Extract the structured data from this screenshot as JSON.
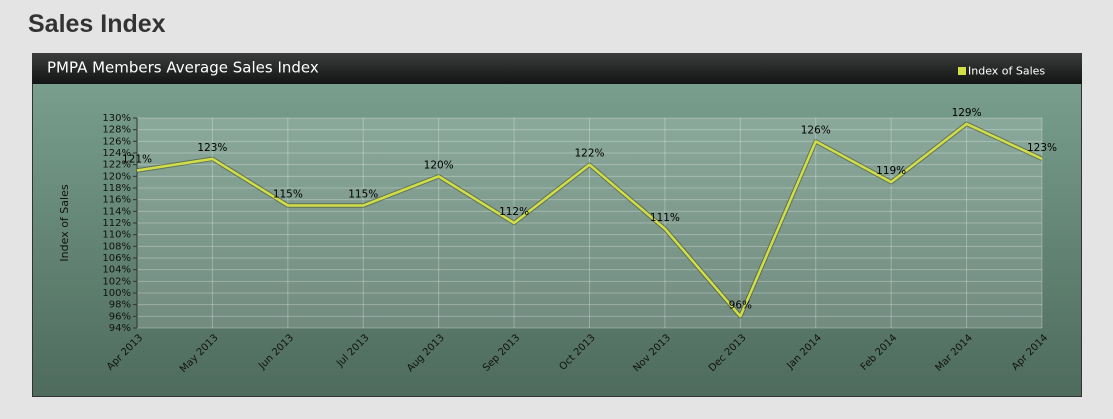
{
  "heading": "Sales Index",
  "chart_data": {
    "type": "line",
    "title": "PMPA Members Average Sales Index",
    "y_label": "Index of Sales",
    "categories": [
      "Apr 2013",
      "May 2013",
      "Jun 2013",
      "Jul 2013",
      "Aug 2013",
      "Sep 2013",
      "Oct 2013",
      "Nov 2013",
      "Dec 2013",
      "Jan 2014",
      "Feb 2014",
      "Mar 2014",
      "Apr 2014"
    ],
    "series": [
      {
        "name": "Index of Sales",
        "color": "#d2de48",
        "values": [
          121,
          123,
          115,
          115,
          120,
          112,
          122,
          111,
          96,
          126,
          119,
          129,
          123
        ],
        "value_labels": [
          "121%",
          "123%",
          "115%",
          "115%",
          "120%",
          "112%",
          "122%",
          "111%",
          "96%",
          "126%",
          "119%",
          "129%",
          "123%"
        ]
      }
    ],
    "ylim": [
      94,
      130
    ],
    "yticks": [
      {
        "value": 94,
        "label": "94%"
      },
      {
        "value": 96,
        "label": "96%"
      },
      {
        "value": 98,
        "label": "98%"
      },
      {
        "value": 100,
        "label": "100%"
      },
      {
        "value": 102,
        "label": "102%"
      },
      {
        "value": 104,
        "label": "104%"
      },
      {
        "value": 106,
        "label": "106%"
      },
      {
        "value": 108,
        "label": "108%"
      },
      {
        "value": 110,
        "label": "110%"
      },
      {
        "value": 112,
        "label": "112%"
      },
      {
        "value": 114,
        "label": "114%"
      },
      {
        "value": 116,
        "label": "116%"
      },
      {
        "value": 118,
        "label": "118%"
      },
      {
        "value": 120,
        "label": "120%"
      },
      {
        "value": 122,
        "label": "122%"
      },
      {
        "value": 124,
        "label": "124%"
      },
      {
        "value": 126,
        "label": "126%"
      },
      {
        "value": 128,
        "label": "128%"
      },
      {
        "value": 130,
        "label": "130%"
      }
    ],
    "grid": true,
    "legend": "top-right"
  }
}
